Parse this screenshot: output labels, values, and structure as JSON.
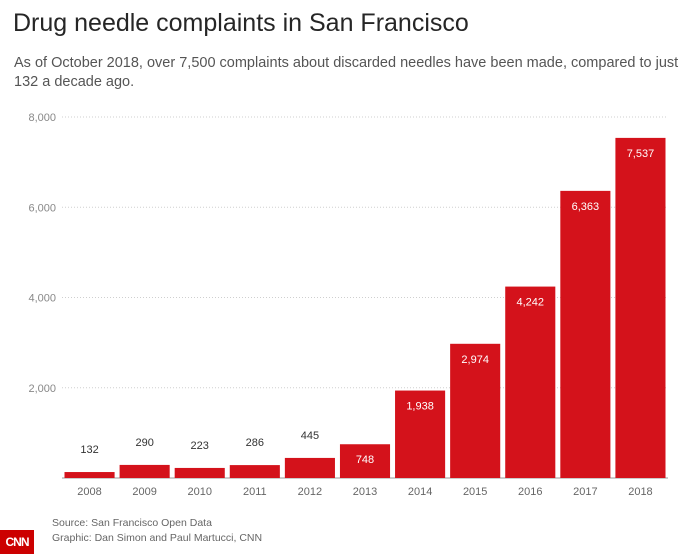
{
  "header": {
    "title": "Drug needle complaints in San Francisco",
    "subtitle": "As of October 2018, over 7,500 complaints about discarded needles have been made, compared to just 132 a decade ago."
  },
  "footer": {
    "source": "Source: San Francisco Open Data",
    "credit": "Graphic: Dan Simon and Paul Martucci, CNN",
    "logo_text": "CNN"
  },
  "colors": {
    "bar": "#d4121b",
    "grid": "#cfcfcf",
    "tick_text": "#888888",
    "label_outside": "#333333",
    "label_inside": "#ffffff"
  },
  "chart_data": {
    "type": "bar",
    "title": "Drug needle complaints in San Francisco",
    "xlabel": "",
    "ylabel": "",
    "categories": [
      "2008",
      "2009",
      "2010",
      "2011",
      "2012",
      "2013",
      "2014",
      "2015",
      "2016",
      "2017",
      "2018"
    ],
    "values": [
      132,
      290,
      223,
      286,
      445,
      748,
      1938,
      2974,
      4242,
      6363,
      7537
    ],
    "value_labels": [
      "132",
      "290",
      "223",
      "286",
      "445",
      "748",
      "1,938",
      "2,974",
      "4,242",
      "6,363",
      "7,537"
    ],
    "ylim": [
      0,
      8000
    ],
    "yticks": [
      0,
      2000,
      4000,
      6000,
      8000
    ],
    "ytick_labels": [
      "",
      "2,000",
      "4,000",
      "6,000",
      "8,000"
    ],
    "grid": true,
    "legend": "none"
  }
}
